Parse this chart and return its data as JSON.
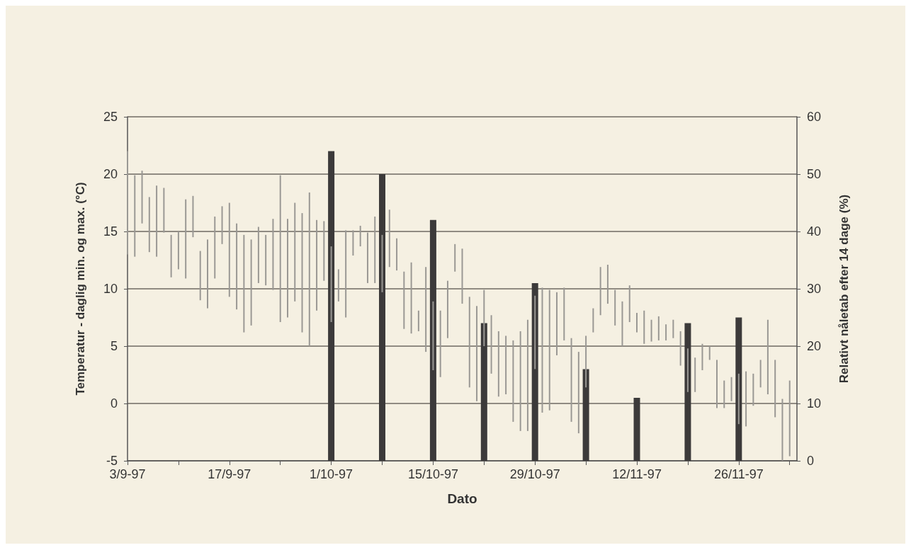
{
  "chart_data": {
    "type": "bar",
    "xlabel": "Dato",
    "ylabel": "Temperatur - daglig min. og max. (°C)",
    "y2label": "Relativt nåletab efter 14 dage (%)",
    "xlim": [
      "1997-09-03",
      "1997-12-04"
    ],
    "xticks": [
      {
        "value": "1997-09-03",
        "label": "3/9-97"
      },
      {
        "value": "1997-09-10",
        "label": null
      },
      {
        "value": "1997-09-17",
        "label": "17/9-97"
      },
      {
        "value": "1997-09-24",
        "label": null
      },
      {
        "value": "1997-10-01",
        "label": "1/10-97"
      },
      {
        "value": "1997-10-08",
        "label": null
      },
      {
        "value": "1997-10-15",
        "label": "15/10-97"
      },
      {
        "value": "1997-10-22",
        "label": null
      },
      {
        "value": "1997-10-29",
        "label": "29/10-97"
      },
      {
        "value": "1997-11-05",
        "label": null
      },
      {
        "value": "1997-11-12",
        "label": "12/11-97"
      },
      {
        "value": "1997-11-19",
        "label": null
      },
      {
        "value": "1997-11-26",
        "label": "26/11-97"
      },
      {
        "value": "1997-12-03",
        "label": null
      }
    ],
    "ylim": [
      -5,
      25
    ],
    "yticks": [
      -5,
      0,
      5,
      10,
      15,
      20,
      25
    ],
    "y2lim": [
      0,
      60
    ],
    "y2ticks": [
      0,
      10,
      20,
      30,
      40,
      50,
      60
    ],
    "grid": "y",
    "series": [
      {
        "color": "#3c3a3a",
        "axis": "y2",
        "x": [
          "1997-10-01",
          "1997-10-08",
          "1997-10-15",
          "1997-10-22",
          "1997-10-29",
          "1997-11-05",
          "1997-11-12",
          "1997-11-19",
          "1997-11-26"
        ],
        "values": [
          54,
          50,
          42,
          24,
          31,
          16,
          11,
          24,
          25
        ]
      },
      {
        "color": "#9a9894",
        "x": [
          "1997-09-03",
          "1997-09-04",
          "1997-09-05",
          "1997-09-06",
          "1997-09-07",
          "1997-09-08",
          "1997-09-09",
          "1997-09-10",
          "1997-09-11",
          "1997-09-12",
          "1997-09-13",
          "1997-09-14",
          "1997-09-15",
          "1997-09-16",
          "1997-09-17",
          "1997-09-18",
          "1997-09-19",
          "1997-09-20",
          "1997-09-21",
          "1997-09-22",
          "1997-09-23",
          "1997-09-24",
          "1997-09-25",
          "1997-09-26",
          "1997-09-27",
          "1997-09-28",
          "1997-09-29",
          "1997-09-30",
          "1997-10-01",
          "1997-10-02",
          "1997-10-03",
          "1997-10-04",
          "1997-10-05",
          "1997-10-06",
          "1997-10-07",
          "1997-10-08",
          "1997-10-09",
          "1997-10-10",
          "1997-10-11",
          "1997-10-12",
          "1997-10-13",
          "1997-10-14",
          "1997-10-15",
          "1997-10-16",
          "1997-10-17",
          "1997-10-18",
          "1997-10-19",
          "1997-10-20",
          "1997-10-21",
          "1997-10-22",
          "1997-10-23",
          "1997-10-24",
          "1997-10-25",
          "1997-10-26",
          "1997-10-27",
          "1997-10-28",
          "1997-10-29",
          "1997-10-30",
          "1997-10-31",
          "1997-11-01",
          "1997-11-02",
          "1997-11-03",
          "1997-11-04",
          "1997-11-05",
          "1997-11-06",
          "1997-11-07",
          "1997-11-08",
          "1997-11-09",
          "1997-11-10",
          "1997-11-11",
          "1997-11-12",
          "1997-11-13",
          "1997-11-14",
          "1997-11-15",
          "1997-11-16",
          "1997-11-17",
          "1997-11-18",
          "1997-11-19",
          "1997-11-20",
          "1997-11-21",
          "1997-11-22",
          "1997-11-23",
          "1997-11-24",
          "1997-11-25",
          "1997-11-26",
          "1997-11-27",
          "1997-11-28",
          "1997-11-29",
          "1997-11-30",
          "1997-12-01",
          "1997-12-02",
          "1997-12-03"
        ],
        "base": [
          13,
          12.8,
          15.7,
          13.2,
          12.8,
          14.9,
          11,
          11.7,
          10.9,
          14.5,
          9,
          8.3,
          10.9,
          13.9,
          9.3,
          8.2,
          6.2,
          6.8,
          10.5,
          10.3,
          9.9,
          7.1,
          7.5,
          8.9,
          6.2,
          5,
          8.1,
          10.7,
          7.1,
          8.9,
          7.5,
          12.9,
          13.7,
          10.5,
          10.5,
          9.7,
          11.9,
          11.6,
          6.5,
          6.1,
          6.3,
          4.5,
          2.9,
          2.3,
          5.7,
          11.5,
          8.7,
          1.4,
          0.2,
          5,
          2.6,
          0.6,
          0.8,
          -1.6,
          -2.4,
          -2.4,
          3,
          -0.8,
          -0.6,
          4.2,
          5.5,
          -1.6,
          -2.6,
          1.4,
          6.2,
          7.7,
          8.7,
          6.8,
          5,
          7.1,
          6.2,
          5.2,
          5.4,
          5.5,
          5.5,
          5.7,
          3.3,
          1,
          1,
          2.9,
          3.8,
          -0.4,
          -0.4,
          0.2,
          -1.8,
          -2,
          -0.2,
          1.4,
          0.8,
          -1.2,
          -5,
          -4.6
        ],
        "values": [
          9,
          7.1,
          4.6,
          4.8,
          6.2,
          3.9,
          3.7,
          3.3,
          6.9,
          3.6,
          4.3,
          6,
          5.4,
          3.3,
          8.2,
          7.5,
          8.5,
          7.5,
          4.9,
          4.4,
          6.2,
          12.8,
          8.6,
          8.6,
          10.4,
          13.4,
          7.9,
          5.2,
          6.6,
          2.8,
          7.6,
          2.2,
          1.8,
          4.4,
          5.8,
          5,
          5,
          2.8,
          5,
          6.2,
          1.8,
          7.4,
          6,
          5.8,
          5,
          2.4,
          4.8,
          7.9,
          8.3,
          4.9,
          5.1,
          5.7,
          5.1,
          7.1,
          8.7,
          9.7,
          6.4,
          10.9,
          10.5,
          5.5,
          4.6,
          7.3,
          7.1,
          4.5,
          2.1,
          4.2,
          3.4,
          3.1,
          3.9,
          3.2,
          1.7,
          2.9,
          1.9,
          2.1,
          1.4,
          1.6,
          3,
          3.8,
          3,
          2.3,
          1.2,
          4.2,
          2.4,
          2.1,
          4.4,
          4.8,
          2.8,
          2.4,
          6.5,
          5,
          5.4,
          6.6
        ]
      }
    ]
  }
}
